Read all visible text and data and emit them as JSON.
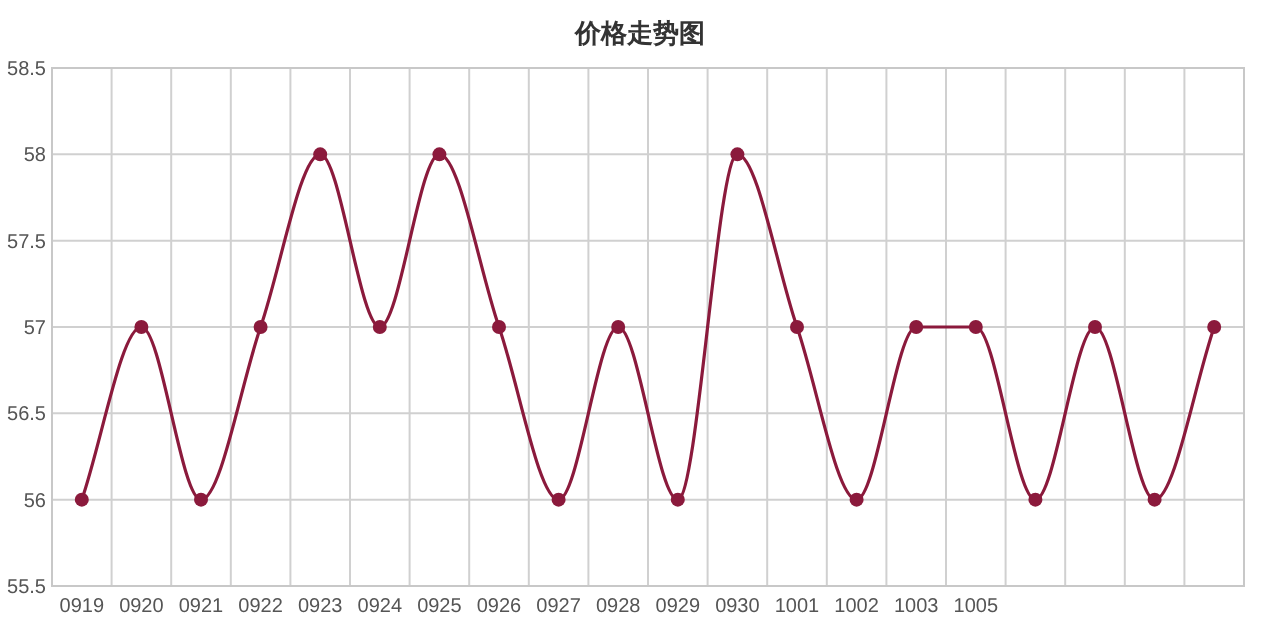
{
  "chart_data": {
    "type": "line",
    "title": "价格走势图",
    "categories": [
      "0919",
      "0920",
      "0921",
      "0922",
      "0923",
      "0924",
      "0925",
      "0926",
      "0927",
      "0928",
      "0929",
      "0930",
      "1001",
      "1002",
      "1003",
      "1005",
      null,
      null,
      null,
      null
    ],
    "series": [
      {
        "color": "#8b1a3c",
        "values": [
          56,
          57,
          56,
          57,
          58,
          57,
          58,
          57,
          56,
          57,
          56,
          58,
          57,
          56,
          57,
          57,
          56,
          57,
          56,
          57
        ]
      }
    ],
    "ylim": [
      55.5,
      58.5
    ],
    "yticks": [
      55.5,
      56,
      56.5,
      57,
      57.5,
      58,
      58.5
    ],
    "grid": true,
    "marker": "circle",
    "line_style": "solid"
  }
}
